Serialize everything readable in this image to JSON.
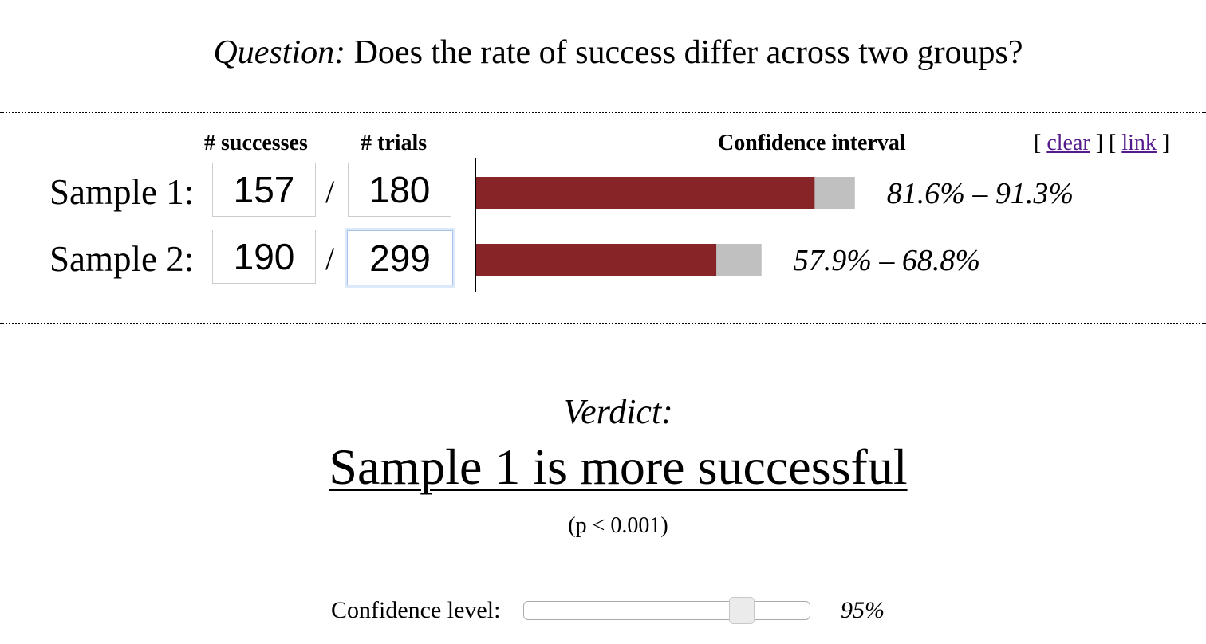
{
  "question": {
    "prefix": "Question:",
    "text": "Does the rate of success differ across two groups?"
  },
  "table": {
    "successes_header": "# successes",
    "trials_header": "# trials",
    "ci_header": "Confidence interval",
    "clear_link": "clear",
    "link_link": "link",
    "slash": "/"
  },
  "samples": [
    {
      "label": "Sample 1:",
      "successes": "157",
      "trials": "180",
      "ci_text": "81.6% – 91.3%"
    },
    {
      "label": "Sample 2:",
      "successes": "190",
      "trials": "299",
      "ci_text": "57.9% – 68.8%"
    }
  ],
  "chart_data": {
    "type": "bar",
    "categories": [
      "Sample 1",
      "Sample 2"
    ],
    "series": [
      {
        "values": [
          81.6,
          57.9
        ]
      },
      {
        "values": [
          91.3,
          68.8
        ]
      }
    ],
    "xlim": [
      0,
      100
    ],
    "colors": {
      "lower": "#862428",
      "interval": "#c0c0c0"
    }
  },
  "verdict": {
    "label": "Verdict:",
    "text": "Sample 1 is more successful",
    "pvalue": "(p < 0.001)"
  },
  "confidence": {
    "label": "Confidence level:",
    "value_text": "95%",
    "level": 0.95,
    "range": [
      0.8,
      0.99
    ]
  }
}
